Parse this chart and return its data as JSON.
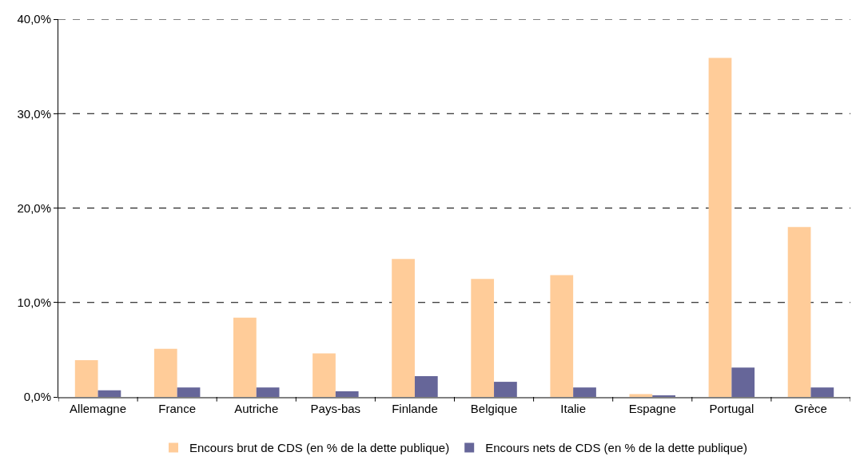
{
  "chart_data": {
    "type": "bar",
    "categories": [
      "Allemagne",
      "France",
      "Autriche",
      "Pays-bas",
      "Finlande",
      "Belgique",
      "Italie",
      "Espagne",
      "Portugal",
      "Grèce"
    ],
    "series": [
      {
        "name": "Encours brut de CDS (en % de la dette publique)",
        "color": "#ffcc99",
        "values": [
          3.9,
          5.1,
          8.4,
          4.6,
          14.6,
          12.5,
          12.9,
          0.3,
          35.9,
          18.0
        ]
      },
      {
        "name": "Encours nets de CDS (en % de la dette publique)",
        "color": "#666699",
        "values": [
          0.7,
          1.0,
          1.0,
          0.6,
          2.2,
          1.6,
          1.0,
          0.1,
          3.1,
          1.0
        ]
      }
    ],
    "ylim": [
      0,
      40
    ],
    "yticks": [
      {
        "value": 0,
        "label": "0,0%"
      },
      {
        "value": 10,
        "label": "10,0%"
      },
      {
        "value": 20,
        "label": "20,0%"
      },
      {
        "value": 30,
        "label": "30,0%"
      },
      {
        "value": 40,
        "label": "40,0%"
      }
    ],
    "grid": "y",
    "legend": "bottom"
  }
}
